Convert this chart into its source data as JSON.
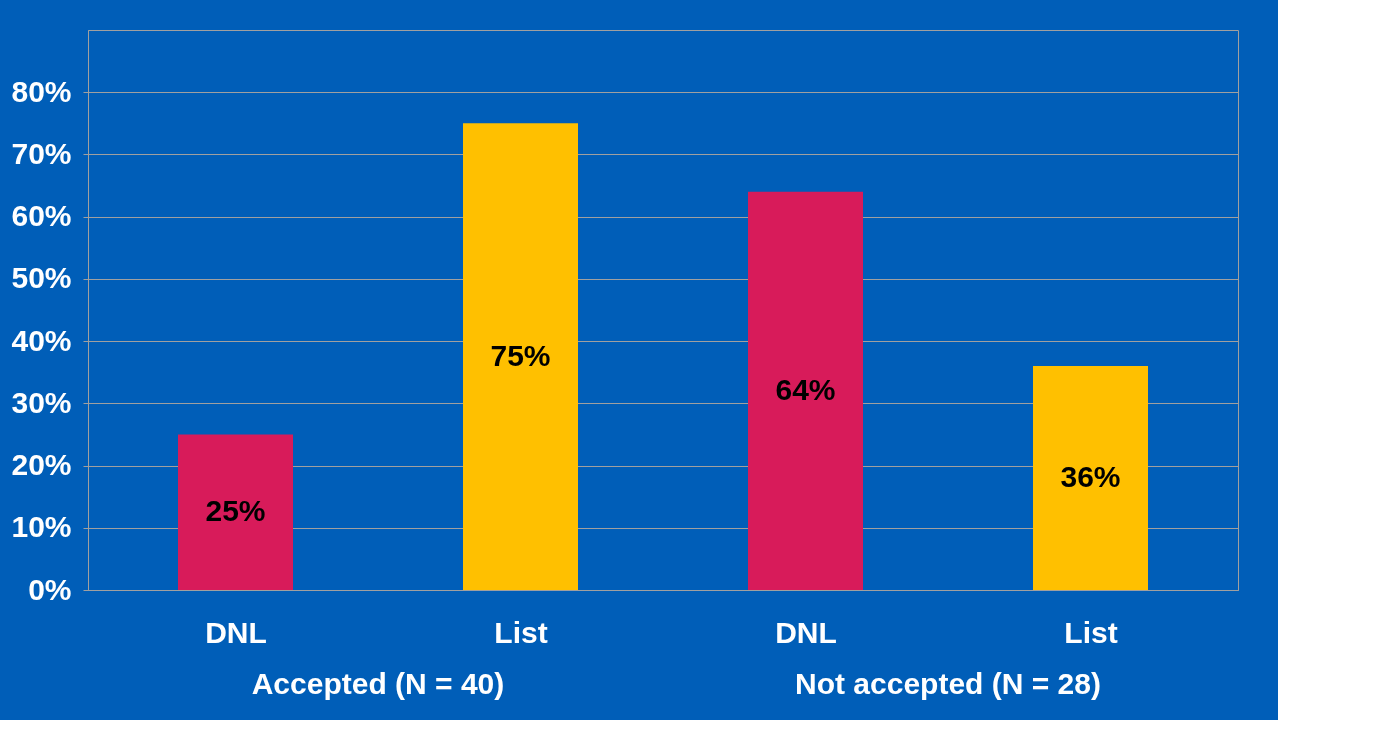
{
  "chart_data": {
    "type": "bar",
    "categories": [
      "DNL",
      "List",
      "DNL",
      "List"
    ],
    "values": [
      25,
      75,
      64,
      36
    ],
    "colors": [
      "#d81b5a",
      "#ffc000",
      "#d81b5a",
      "#ffc000"
    ],
    "value_labels": [
      "25%",
      "75%",
      "64%",
      "36%"
    ],
    "ylim": [
      0,
      90
    ],
    "yticks": [
      {
        "value": 0,
        "label": "0%"
      },
      {
        "value": 10,
        "label": "10%"
      },
      {
        "value": 20,
        "label": "20%"
      },
      {
        "value": 30,
        "label": "30%"
      },
      {
        "value": 40,
        "label": "40%"
      },
      {
        "value": 50,
        "label": "50%"
      },
      {
        "value": 60,
        "label": "60%"
      },
      {
        "value": 70,
        "label": "70%"
      },
      {
        "value": 80,
        "label": "80%"
      }
    ],
    "grid": "y",
    "annotations": [
      "Accepted (N = 40)",
      "Not accepted (N = 28)"
    ]
  }
}
